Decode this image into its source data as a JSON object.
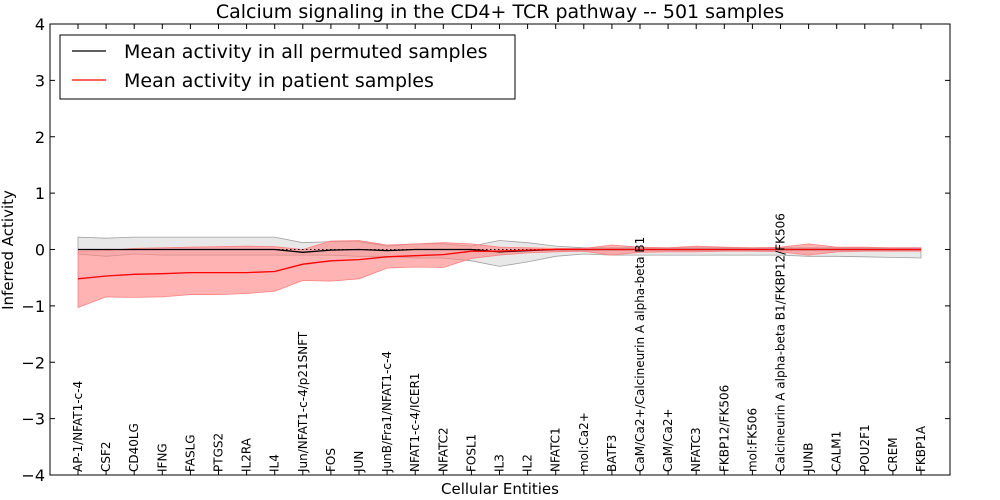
{
  "chart_data": {
    "type": "line",
    "title": "Calcium signaling in the CD4+ TCR pathway -- 501 samples",
    "xlabel": "Cellular Entities",
    "ylabel": "Inferred Activity",
    "ylim": [
      -4,
      4
    ],
    "yticks": [
      -4,
      -3,
      -2,
      -1,
      0,
      1,
      2,
      3,
      4
    ],
    "yticklabels": [
      "−4",
      "−3",
      "−2",
      "−1",
      "0",
      "1",
      "2",
      "3",
      "4"
    ],
    "legend_position": "top-left",
    "categories": [
      "AP-1/NFAT1-c-4",
      "CSF2",
      "CD40LG",
      "IFNG",
      "FASLG",
      "PTGS2",
      "IL2RA",
      "IL4",
      "Jun/NFAT1-c-4/p21SNFT",
      "FOS",
      "JUN",
      "JunB/Fra1/NFAT1-c-4",
      "NFAT1-c-4/ICER1",
      "NFATC2",
      "FOSL1",
      "IL3",
      "IL2",
      "NFATC1",
      "mol:Ca2+",
      "BATF3",
      "CaM/Ca2+/Calcineurin A alpha-beta B1",
      "CaM/Ca2+",
      "NFATC3",
      "FKBP12/FK506",
      "mol:FK506",
      "Calcineurin A alpha-beta B1/FKBP12/FK506",
      "JUNB",
      "CALM1",
      "POU2F1",
      "CREM",
      "FKBP1A"
    ],
    "series": [
      {
        "name": "Mean activity in all permuted samples",
        "color": "#000000",
        "values": [
          0.0,
          0.0,
          0.0,
          0.0,
          0.0,
          0.0,
          0.0,
          0.0,
          -0.05,
          -0.01,
          0.0,
          -0.02,
          0.0,
          0.0,
          0.0,
          -0.04,
          -0.02,
          0.0,
          0.0,
          0.0,
          0.0,
          0.0,
          0.0,
          0.0,
          0.0,
          0.0,
          0.0,
          0.0,
          0.0,
          0.0,
          0.0
        ],
        "band_upper": [
          0.22,
          0.2,
          0.22,
          0.22,
          0.22,
          0.22,
          0.22,
          0.22,
          0.12,
          0.14,
          0.14,
          0.06,
          0.1,
          0.1,
          0.06,
          0.16,
          0.12,
          0.06,
          0.03,
          0.03,
          0.03,
          0.03,
          0.03,
          0.03,
          0.03,
          0.03,
          0.03,
          0.03,
          0.03,
          0.03,
          0.03
        ],
        "band_lower": [
          -0.08,
          -0.12,
          -0.08,
          -0.1,
          -0.1,
          -0.1,
          -0.1,
          -0.1,
          -0.1,
          -0.1,
          -0.12,
          -0.12,
          -0.15,
          -0.15,
          -0.2,
          -0.3,
          -0.22,
          -0.12,
          -0.08,
          -0.1,
          -0.1,
          -0.1,
          -0.1,
          -0.1,
          -0.1,
          -0.1,
          -0.12,
          -0.12,
          -0.13,
          -0.14,
          -0.15
        ]
      },
      {
        "name": "Mean activity in patient samples",
        "color": "#ff0000",
        "band_color": "#ff8080",
        "values": [
          -0.52,
          -0.47,
          -0.44,
          -0.43,
          -0.41,
          -0.41,
          -0.41,
          -0.39,
          -0.26,
          -0.2,
          -0.18,
          -0.13,
          -0.11,
          -0.09,
          -0.03,
          -0.03,
          -0.01,
          0.0,
          0.0,
          0.0,
          0.0,
          0.0,
          0.0,
          0.0,
          0.0,
          0.0,
          0.0,
          0.0,
          0.0,
          0.0,
          0.0
        ],
        "band_upper": [
          -0.03,
          -0.02,
          0.02,
          0.03,
          0.04,
          0.05,
          0.06,
          0.05,
          0.0,
          0.15,
          0.16,
          0.08,
          0.1,
          0.12,
          0.1,
          0.04,
          0.03,
          0.02,
          0.02,
          0.08,
          0.04,
          0.03,
          0.06,
          0.04,
          0.03,
          0.04,
          0.1,
          0.04,
          0.04,
          0.03,
          0.03
        ],
        "band_lower": [
          -1.03,
          -0.84,
          -0.85,
          -0.84,
          -0.8,
          -0.8,
          -0.78,
          -0.74,
          -0.55,
          -0.56,
          -0.52,
          -0.33,
          -0.31,
          -0.32,
          -0.16,
          -0.1,
          -0.06,
          -0.04,
          -0.03,
          -0.1,
          -0.05,
          -0.04,
          -0.04,
          -0.03,
          -0.03,
          -0.04,
          -0.1,
          -0.04,
          -0.03,
          -0.03,
          -0.03
        ]
      }
    ]
  }
}
